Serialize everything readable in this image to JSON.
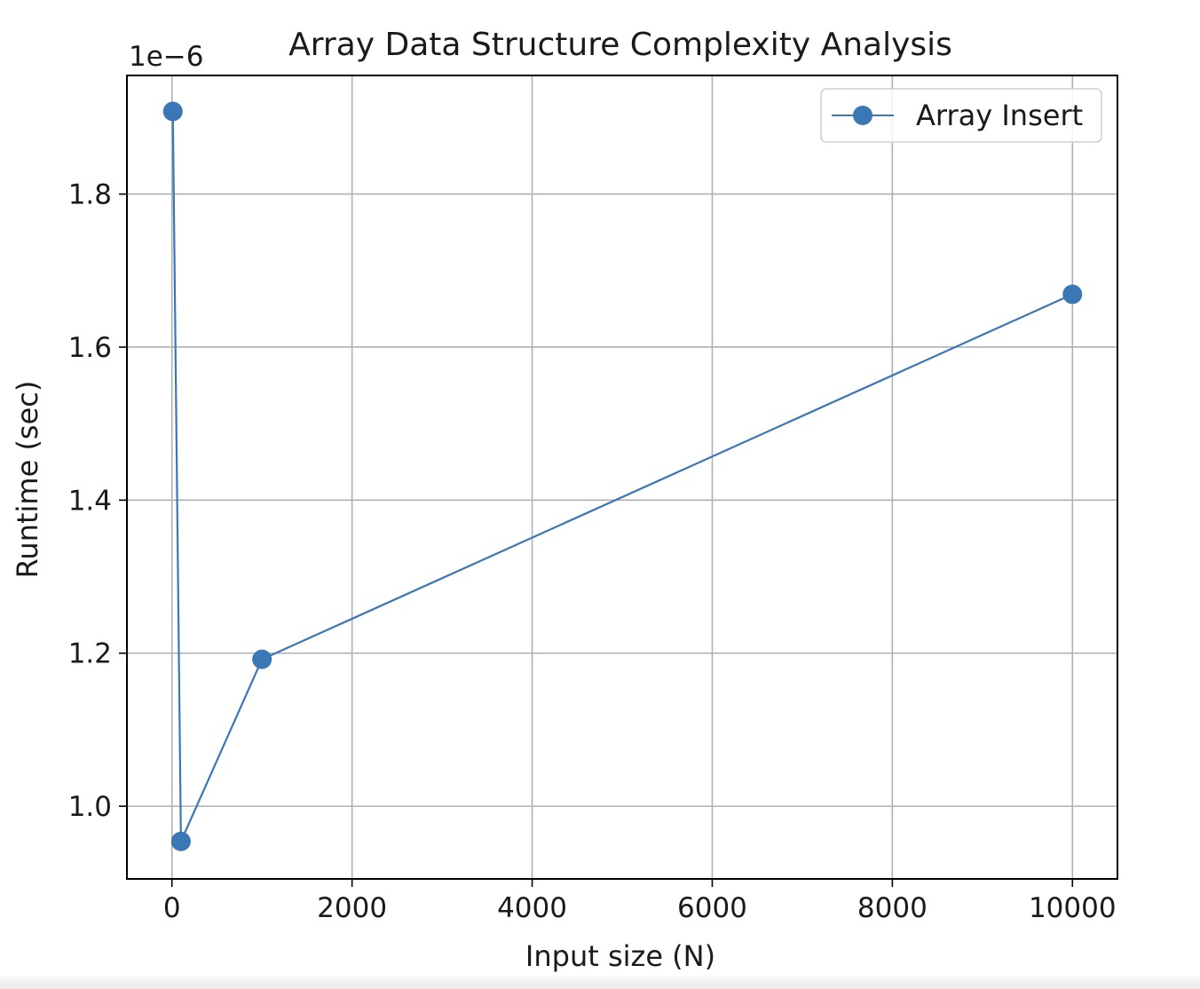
{
  "chart_data": {
    "type": "line",
    "title": "Array Data Structure Complexity Analysis",
    "xlabel": "Input size (N)",
    "ylabel": "Runtime (sec)",
    "y_offset_label": "1e−6",
    "xlim": [
      -500,
      10500
    ],
    "ylim": [
      0.905,
      1.955
    ],
    "x_ticks": [
      0,
      2000,
      4000,
      6000,
      8000,
      10000
    ],
    "x_tick_labels": [
      "0",
      "2000",
      "4000",
      "6000",
      "8000",
      "10000"
    ],
    "y_ticks": [
      1.0,
      1.2,
      1.4,
      1.6,
      1.8
    ],
    "y_tick_labels": [
      "1.0",
      "1.2",
      "1.4",
      "1.6",
      "1.8"
    ],
    "grid": true,
    "legend": "upper right",
    "series": [
      {
        "name": "Array Insert",
        "color": "#3b76b5",
        "marker": "circle",
        "x": [
          10,
          100,
          1000,
          10000
        ],
        "y": [
          1.908,
          0.954,
          1.192,
          1.669
        ]
      }
    ]
  }
}
